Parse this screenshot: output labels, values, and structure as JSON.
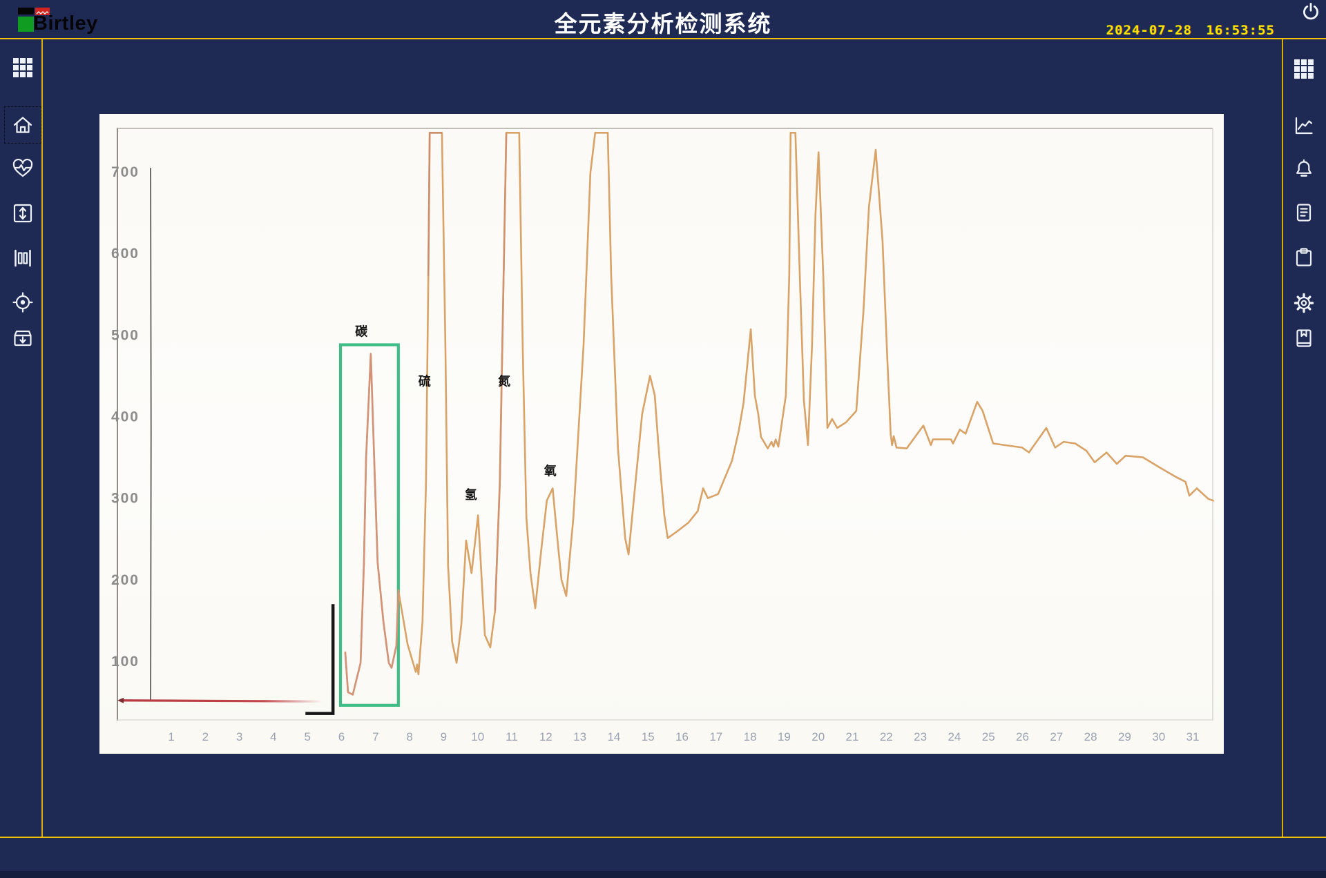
{
  "app": {
    "title": "全元素分析检测系统",
    "logo_text": "Birtley",
    "datetime": "2024-07-28 16:53:55"
  },
  "header": {
    "icons": [
      "power-icon"
    ]
  },
  "sidebar_left": {
    "items": [
      "grid-menu",
      "home",
      "heart-pulse",
      "box-vertical-arrows",
      "gate-bars",
      "target",
      "archive-down"
    ],
    "focused_item": "home"
  },
  "sidebar_right": {
    "items": [
      "grid-menu",
      "line-chart",
      "bell",
      "report-document",
      "clipboard",
      "gear",
      "bookmark-book"
    ]
  },
  "chart_data": {
    "type": "line",
    "title": "",
    "xlabel": "",
    "ylabel": "",
    "xlim": [
      0,
      32
    ],
    "ylim": [
      0,
      750
    ],
    "grid": false,
    "legend": "none",
    "x_ticks": [
      1,
      2,
      3,
      4,
      5,
      6,
      7,
      8,
      9,
      10,
      11,
      12,
      13,
      14,
      15,
      16,
      17,
      18,
      19,
      20,
      21,
      22,
      23,
      24,
      25,
      26,
      27,
      28,
      29,
      30,
      31
    ],
    "y_ticks": [
      100,
      200,
      300,
      400,
      500,
      600,
      700
    ],
    "clip_value": 748,
    "colors": {
      "trace": "#d9a266",
      "trace_salmon": "#d1907c",
      "trace_red": "#c98a6e",
      "baseline_red": "#c1474b",
      "baseline_gray": "#9aa0ac",
      "baseline_gray_light": "#b7b8cc",
      "selection_green": "#3fbd86",
      "bracket_black": "#161616"
    },
    "annotations": [
      {
        "text": "碳",
        "x": 6.58,
        "v": 499
      },
      {
        "text": "硫",
        "x": 8.44,
        "v": 438
      },
      {
        "text": "氢",
        "x": 9.8,
        "v": 299
      },
      {
        "text": "氮",
        "x": 10.78,
        "v": 438
      },
      {
        "text": "氧",
        "x": 12.13,
        "v": 328
      }
    ],
    "selection_region": {
      "x1": 5.97,
      "x2": 7.67,
      "v1": 46,
      "v2": 488
    },
    "red_baseline": {
      "x1": -0.48,
      "x2": 5.44,
      "v": 52
    },
    "gray_baseline": {
      "x1": 7.67,
      "x2": 31.6,
      "v": 47
    },
    "integrator_mark": {
      "x": 5.75,
      "v_top": 170,
      "v_bottom": 36,
      "x_foot": 4.94
    },
    "overlays": [
      {
        "from": 6.05,
        "to": 7.7,
        "color": "#d1907c"
      },
      {
        "from": 8.55,
        "to": 9.0,
        "color": "#c98a6e"
      },
      {
        "from": 10.45,
        "to": 10.9,
        "color": "#cf9070"
      }
    ],
    "series": [
      [
        6.11,
        111
      ],
      [
        6.19,
        62
      ],
      [
        6.33,
        59
      ],
      [
        6.56,
        98
      ],
      [
        6.66,
        221
      ],
      [
        6.72,
        348
      ],
      [
        6.86,
        477
      ],
      [
        6.96,
        348
      ],
      [
        7.06,
        221
      ],
      [
        7.23,
        149
      ],
      [
        7.39,
        98
      ],
      [
        7.47,
        92
      ],
      [
        7.61,
        119
      ],
      [
        7.67,
        187
      ],
      [
        7.94,
        121
      ],
      [
        8.18,
        87
      ],
      [
        8.22,
        96
      ],
      [
        8.26,
        84
      ],
      [
        8.38,
        149
      ],
      [
        8.48,
        318
      ],
      [
        8.55,
        572
      ],
      [
        8.59,
        748
      ],
      [
        8.95,
        748
      ],
      [
        9.05,
        488
      ],
      [
        9.13,
        217
      ],
      [
        9.25,
        124
      ],
      [
        9.38,
        98
      ],
      [
        9.52,
        145
      ],
      [
        9.66,
        248
      ],
      [
        9.82,
        208
      ],
      [
        10.01,
        279
      ],
      [
        10.13,
        191
      ],
      [
        10.21,
        132
      ],
      [
        10.37,
        117
      ],
      [
        10.51,
        162
      ],
      [
        10.65,
        318
      ],
      [
        10.76,
        572
      ],
      [
        10.84,
        748
      ],
      [
        11.22,
        748
      ],
      [
        11.32,
        488
      ],
      [
        11.43,
        276
      ],
      [
        11.55,
        208
      ],
      [
        11.69,
        165
      ],
      [
        11.87,
        238
      ],
      [
        12.03,
        297
      ],
      [
        12.2,
        312
      ],
      [
        12.36,
        242
      ],
      [
        12.46,
        200
      ],
      [
        12.6,
        180
      ],
      [
        12.81,
        276
      ],
      [
        13.11,
        488
      ],
      [
        13.31,
        699
      ],
      [
        13.45,
        748
      ],
      [
        13.82,
        748
      ],
      [
        13.92,
        572
      ],
      [
        14.12,
        361
      ],
      [
        14.33,
        251
      ],
      [
        14.43,
        231
      ],
      [
        14.63,
        318
      ],
      [
        14.83,
        403
      ],
      [
        15.06,
        450
      ],
      [
        15.2,
        426
      ],
      [
        15.3,
        369
      ],
      [
        15.38,
        327
      ],
      [
        15.48,
        279
      ],
      [
        15.58,
        251
      ],
      [
        15.85,
        259
      ],
      [
        16.19,
        270
      ],
      [
        16.46,
        284
      ],
      [
        16.62,
        312
      ],
      [
        16.76,
        300
      ],
      [
        17.06,
        305
      ],
      [
        17.47,
        346
      ],
      [
        17.67,
        383
      ],
      [
        17.81,
        417
      ],
      [
        18.02,
        507
      ],
      [
        18.14,
        426
      ],
      [
        18.24,
        403
      ],
      [
        18.32,
        375
      ],
      [
        18.52,
        361
      ],
      [
        18.63,
        369
      ],
      [
        18.69,
        363
      ],
      [
        18.75,
        372
      ],
      [
        18.83,
        363
      ],
      [
        18.95,
        397
      ],
      [
        19.05,
        426
      ],
      [
        19.15,
        572
      ],
      [
        19.19,
        748
      ],
      [
        19.33,
        748
      ],
      [
        19.46,
        572
      ],
      [
        19.58,
        420
      ],
      [
        19.7,
        365
      ],
      [
        19.82,
        488
      ],
      [
        19.92,
        648
      ],
      [
        20.01,
        724
      ],
      [
        20.15,
        572
      ],
      [
        20.23,
        454
      ],
      [
        20.27,
        386
      ],
      [
        20.41,
        397
      ],
      [
        20.56,
        386
      ],
      [
        20.82,
        393
      ],
      [
        21.12,
        407
      ],
      [
        21.33,
        530
      ],
      [
        21.49,
        657
      ],
      [
        21.69,
        727
      ],
      [
        21.89,
        615
      ],
      [
        22.03,
        471
      ],
      [
        22.13,
        378
      ],
      [
        22.17,
        365
      ],
      [
        22.22,
        376
      ],
      [
        22.3,
        362
      ],
      [
        22.6,
        361
      ],
      [
        23.09,
        389
      ],
      [
        23.31,
        365
      ],
      [
        23.37,
        372
      ],
      [
        23.49,
        372
      ],
      [
        23.9,
        372
      ],
      [
        23.96,
        367
      ],
      [
        24.16,
        384
      ],
      [
        24.33,
        379
      ],
      [
        24.67,
        418
      ],
      [
        24.83,
        407
      ],
      [
        25.14,
        367
      ],
      [
        25.99,
        362
      ],
      [
        26.19,
        356
      ],
      [
        26.7,
        386
      ],
      [
        26.96,
        362
      ],
      [
        27.21,
        369
      ],
      [
        27.55,
        367
      ],
      [
        27.88,
        358
      ],
      [
        28.12,
        344
      ],
      [
        28.47,
        356
      ],
      [
        28.77,
        342
      ],
      [
        29.03,
        352
      ],
      [
        29.54,
        350
      ],
      [
        30.05,
        337
      ],
      [
        30.55,
        325
      ],
      [
        30.79,
        320
      ],
      [
        30.9,
        303
      ],
      [
        31.12,
        312
      ],
      [
        31.46,
        299
      ],
      [
        31.6,
        297
      ]
    ]
  }
}
